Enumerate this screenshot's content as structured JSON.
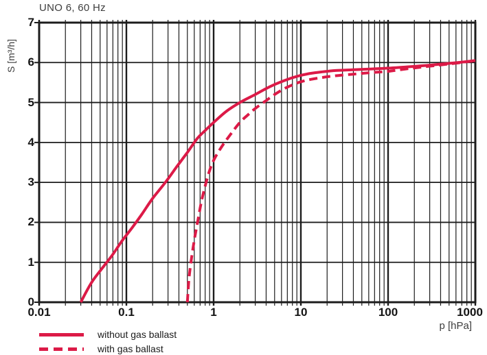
{
  "chart_data": {
    "type": "line",
    "title": "UNO 6, 60 Hz",
    "xlabel": "p [hPa]",
    "ylabel": "S [m³/h]",
    "x_scale": "log",
    "x_range": [
      0.01,
      1000
    ],
    "y_range": [
      0,
      7
    ],
    "x_ticks": [
      0.01,
      0.1,
      1,
      10,
      100,
      1000
    ],
    "x_tick_labels": [
      "0.01",
      "0.1",
      "1",
      "10",
      "100",
      "1000"
    ],
    "y_ticks": [
      0,
      1,
      2,
      3,
      4,
      5,
      6,
      7
    ],
    "grid": true,
    "grid_minor_log": true,
    "legend_position": "bottom-left",
    "series": [
      {
        "name": "without gas ballast",
        "style": "solid",
        "color": "#dc1a47",
        "points": [
          [
            0.03,
            0
          ],
          [
            0.04,
            0.5
          ],
          [
            0.055,
            0.9
          ],
          [
            0.07,
            1.2
          ],
          [
            0.09,
            1.55
          ],
          [
            0.115,
            1.85
          ],
          [
            0.15,
            2.2
          ],
          [
            0.2,
            2.6
          ],
          [
            0.28,
            3.0
          ],
          [
            0.38,
            3.4
          ],
          [
            0.5,
            3.75
          ],
          [
            0.65,
            4.1
          ],
          [
            0.8,
            4.3
          ],
          [
            1,
            4.5
          ],
          [
            1.4,
            4.78
          ],
          [
            2,
            5.0
          ],
          [
            3,
            5.2
          ],
          [
            4,
            5.35
          ],
          [
            5,
            5.45
          ],
          [
            6.5,
            5.55
          ],
          [
            8,
            5.62
          ],
          [
            10,
            5.68
          ],
          [
            13,
            5.73
          ],
          [
            18,
            5.77
          ],
          [
            25,
            5.8
          ],
          [
            40,
            5.82
          ],
          [
            65,
            5.84
          ],
          [
            100,
            5.86
          ],
          [
            160,
            5.89
          ],
          [
            250,
            5.92
          ],
          [
            400,
            5.96
          ],
          [
            630,
            6.0
          ],
          [
            1000,
            6.05
          ]
        ]
      },
      {
        "name": "with gas ballast",
        "style": "dashed",
        "color": "#dc1a47",
        "points": [
          [
            0.5,
            0
          ],
          [
            0.52,
            0.55
          ],
          [
            0.55,
            1.0
          ],
          [
            0.6,
            1.55
          ],
          [
            0.66,
            2.05
          ],
          [
            0.73,
            2.55
          ],
          [
            0.82,
            3.0
          ],
          [
            0.9,
            3.3
          ],
          [
            1,
            3.55
          ],
          [
            1.2,
            3.85
          ],
          [
            1.5,
            4.15
          ],
          [
            2,
            4.5
          ],
          [
            2.5,
            4.7
          ],
          [
            3,
            4.85
          ],
          [
            4,
            5.05
          ],
          [
            5,
            5.2
          ],
          [
            6.5,
            5.35
          ],
          [
            8,
            5.44
          ],
          [
            10,
            5.52
          ],
          [
            13,
            5.58
          ],
          [
            18,
            5.63
          ],
          [
            25,
            5.67
          ],
          [
            40,
            5.71
          ],
          [
            65,
            5.75
          ],
          [
            100,
            5.78
          ],
          [
            160,
            5.84
          ],
          [
            250,
            5.89
          ],
          [
            400,
            5.94
          ],
          [
            630,
            5.99
          ],
          [
            1000,
            6.05
          ]
        ]
      }
    ]
  },
  "legend": {
    "items": [
      {
        "label": "without gas ballast",
        "style": "solid"
      },
      {
        "label": "with gas ballast",
        "style": "dashed"
      }
    ]
  },
  "colors": {
    "curve": "#dc1a47",
    "grid": "#1c1c1c",
    "axis_text": "#141414",
    "label_text": "#3d3d3d",
    "background": "#ffffff"
  }
}
